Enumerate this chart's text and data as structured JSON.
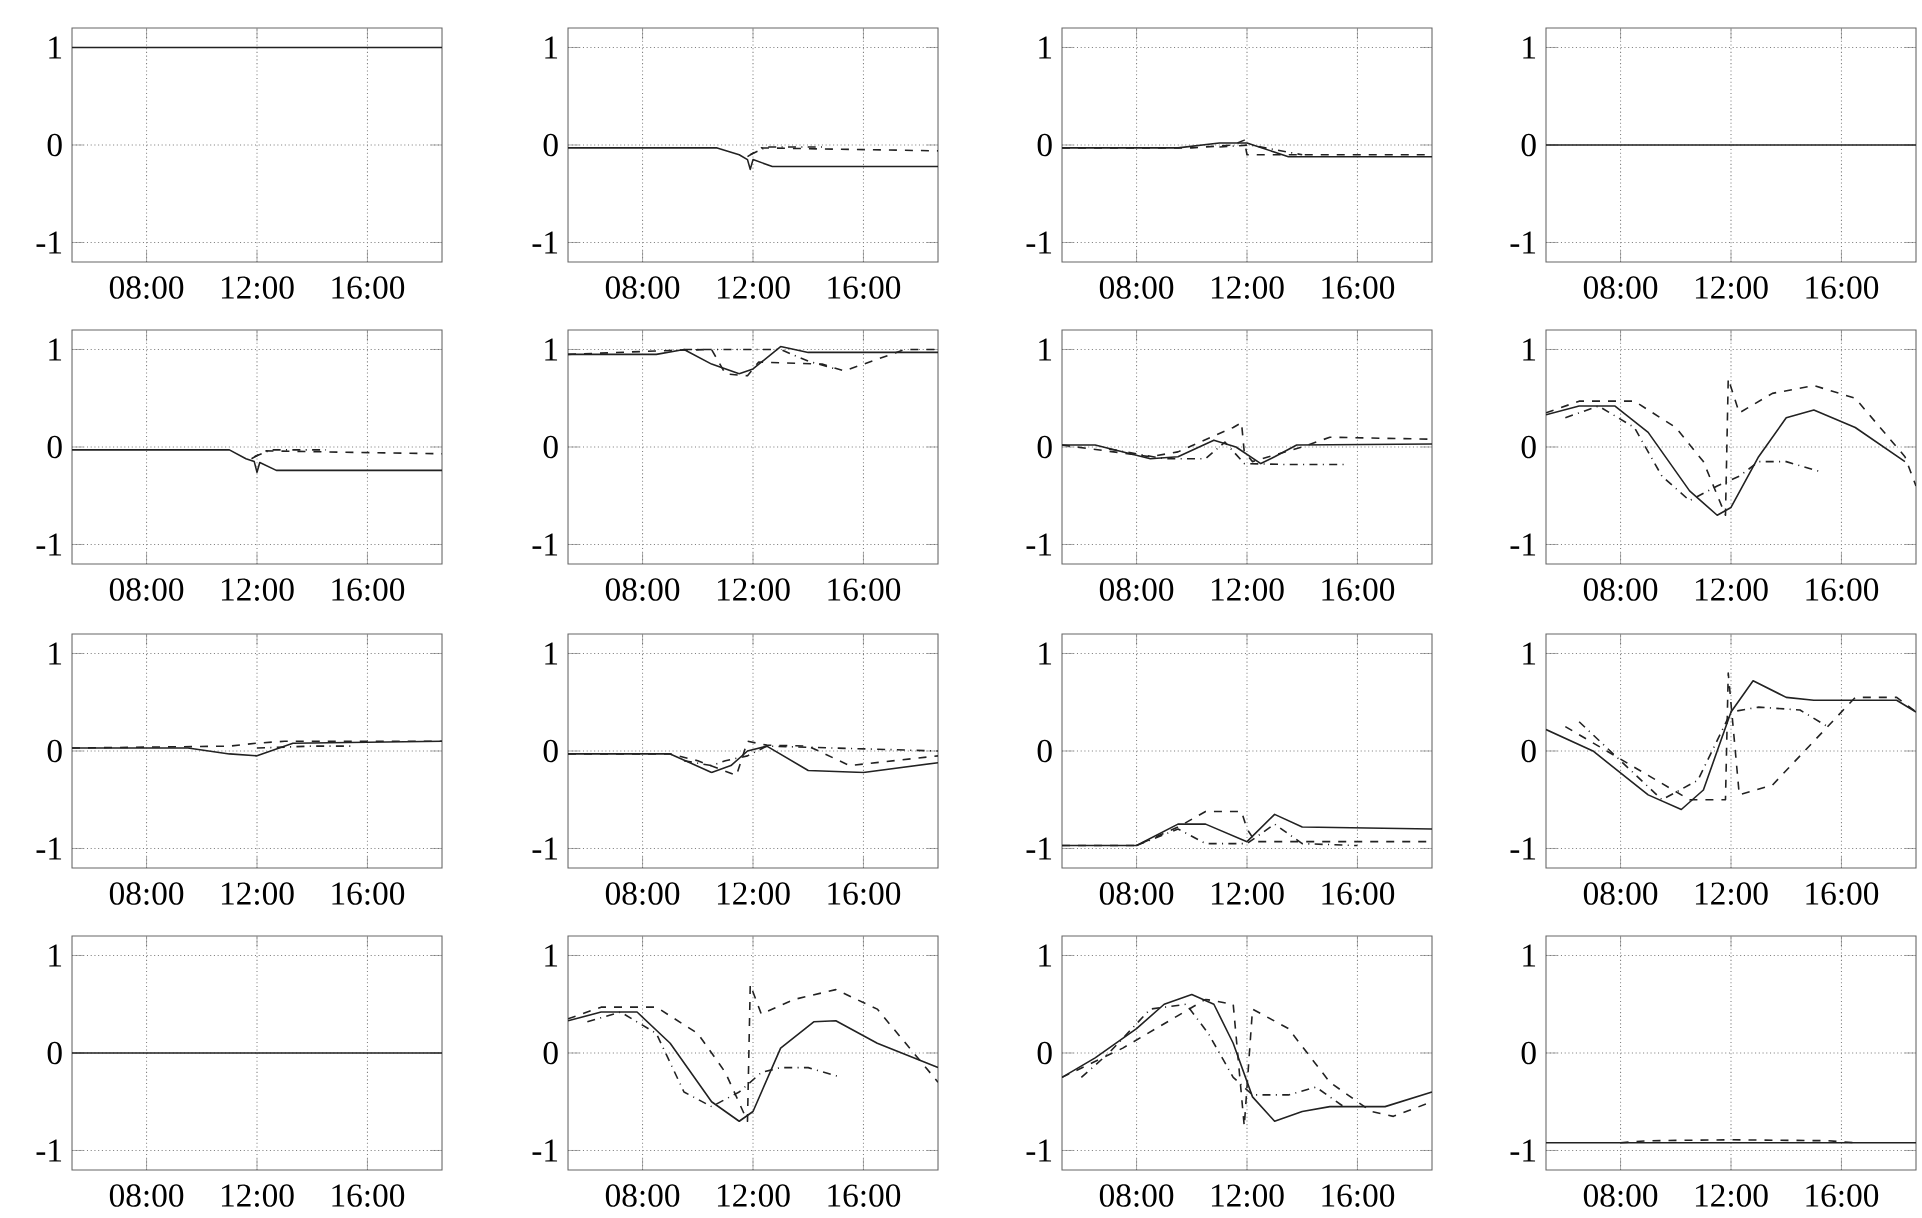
{
  "chart_data": [
    {
      "type": "line",
      "xlim": [
        5.3,
        18.7
      ],
      "ylim": [
        -1.2,
        1.2
      ],
      "xticks": [
        {
          "value": 8,
          "label": "08:00"
        },
        {
          "value": 12,
          "label": "12:00"
        },
        {
          "value": 16,
          "label": "16:00"
        }
      ],
      "yticks": [
        -1,
        0,
        1
      ],
      "grid": true,
      "series": [
        {
          "color": "#222222",
          "line_style": "solid",
          "x": [
            5.3,
            18.7
          ],
          "values": [
            1,
            1
          ]
        }
      ]
    },
    {
      "type": "line",
      "xlim": [
        5.3,
        18.7
      ],
      "ylim": [
        -1.2,
        1.2
      ],
      "xticks": [
        {
          "value": 8,
          "label": "08:00"
        },
        {
          "value": 12,
          "label": "12:00"
        },
        {
          "value": 16,
          "label": "16:00"
        }
      ],
      "yticks": [
        -1,
        0,
        1
      ],
      "grid": true,
      "series": [
        {
          "color": "#222222",
          "line_style": "solid",
          "x": [
            5.3,
            10.7,
            11.5,
            11.8,
            11.9,
            12.0,
            12.7,
            18.7
          ],
          "values": [
            -0.03,
            -0.03,
            -0.1,
            -0.15,
            -0.25,
            -0.15,
            -0.22,
            -0.22
          ]
        },
        {
          "color": "#222222",
          "line_style": "dashed",
          "x": [
            11.8,
            12.3,
            18.7
          ],
          "values": [
            -0.12,
            -0.03,
            -0.06
          ]
        },
        {
          "color": "#222222",
          "line_style": "dashdot",
          "x": [
            11.9,
            12.5,
            14.5
          ],
          "values": [
            -0.1,
            -0.02,
            -0.02
          ]
        }
      ]
    },
    {
      "type": "line",
      "xlim": [
        5.3,
        18.7
      ],
      "ylim": [
        -1.2,
        1.2
      ],
      "xticks": [
        {
          "value": 8,
          "label": "08:00"
        },
        {
          "value": 12,
          "label": "12:00"
        },
        {
          "value": 16,
          "label": "16:00"
        }
      ],
      "yticks": [
        -1,
        0,
        1
      ],
      "grid": true,
      "series": [
        {
          "color": "#222222",
          "line_style": "solid",
          "x": [
            5.3,
            9.5,
            11,
            12,
            13.5,
            18.7
          ],
          "values": [
            -0.03,
            -0.03,
            0.02,
            0.02,
            -0.12,
            -0.12
          ]
        },
        {
          "color": "#222222",
          "line_style": "dashed",
          "x": [
            5.3,
            10,
            11.5,
            11.9,
            12,
            13,
            18.7
          ],
          "values": [
            -0.03,
            -0.03,
            0,
            0.05,
            -0.1,
            -0.1,
            -0.1
          ]
        },
        {
          "color": "#222222",
          "line_style": "dashdot",
          "x": [
            11,
            12.1,
            14
          ],
          "values": [
            -0.02,
            0,
            -0.1
          ]
        }
      ]
    },
    {
      "type": "line",
      "xlim": [
        5.3,
        18.7
      ],
      "ylim": [
        -1.2,
        1.2
      ],
      "xticks": [
        {
          "value": 8,
          "label": "08:00"
        },
        {
          "value": 12,
          "label": "12:00"
        },
        {
          "value": 16,
          "label": "16:00"
        }
      ],
      "yticks": [
        -1,
        0,
        1
      ],
      "grid": true,
      "series": [
        {
          "color": "#222222",
          "line_style": "solid",
          "x": [
            5.3,
            18.7
          ],
          "values": [
            0,
            0
          ]
        }
      ]
    },
    {
      "type": "line",
      "xlim": [
        5.3,
        18.7
      ],
      "ylim": [
        -1.2,
        1.2
      ],
      "xticks": [
        {
          "value": 8,
          "label": "08:00"
        },
        {
          "value": 12,
          "label": "12:00"
        },
        {
          "value": 16,
          "label": "16:00"
        }
      ],
      "yticks": [
        -1,
        0,
        1
      ],
      "grid": true,
      "series": [
        {
          "color": "#222222",
          "line_style": "solid",
          "x": [
            5.3,
            11,
            11.6,
            11.9,
            12.0,
            12.1,
            12.7,
            18.7
          ],
          "values": [
            -0.03,
            -0.03,
            -0.12,
            -0.15,
            -0.26,
            -0.16,
            -0.24,
            -0.24
          ]
        },
        {
          "color": "#222222",
          "line_style": "dashed",
          "x": [
            11.8,
            12.3,
            18.7
          ],
          "values": [
            -0.12,
            -0.04,
            -0.07
          ]
        },
        {
          "color": "#222222",
          "line_style": "dashdot",
          "x": [
            11.9,
            12.5,
            14.5
          ],
          "values": [
            -0.1,
            -0.03,
            -0.03
          ]
        }
      ]
    },
    {
      "type": "line",
      "xlim": [
        5.3,
        18.7
      ],
      "ylim": [
        -1.2,
        1.2
      ],
      "xticks": [
        {
          "value": 8,
          "label": "08:00"
        },
        {
          "value": 12,
          "label": "12:00"
        },
        {
          "value": 16,
          "label": "16:00"
        }
      ],
      "yticks": [
        -1,
        0,
        1
      ],
      "grid": true,
      "series": [
        {
          "color": "#222222",
          "line_style": "solid",
          "x": [
            5.3,
            8.5,
            9.5,
            10.5,
            11.5,
            12.0,
            13.0,
            14,
            18.7
          ],
          "values": [
            0.95,
            0.95,
            1.0,
            0.85,
            0.75,
            0.8,
            1.03,
            0.97,
            0.97
          ]
        },
        {
          "color": "#222222",
          "line_style": "dashed",
          "x": [
            5.3,
            9,
            10.5,
            11.0,
            11.8,
            12.2,
            14.5,
            15.3,
            16.5,
            17.5,
            18.7
          ],
          "values": [
            0.95,
            0.99,
            1.0,
            0.75,
            0.73,
            0.87,
            0.85,
            0.78,
            0.9,
            1.0,
            1.0
          ]
        },
        {
          "color": "#222222",
          "line_style": "dashdot",
          "x": [
            9.5,
            13,
            14,
            15
          ],
          "values": [
            1.0,
            1.0,
            0.88,
            0.8
          ]
        }
      ]
    },
    {
      "type": "line",
      "xlim": [
        5.3,
        18.7
      ],
      "ylim": [
        -1.2,
        1.2
      ],
      "xticks": [
        {
          "value": 8,
          "label": "08:00"
        },
        {
          "value": 12,
          "label": "12:00"
        },
        {
          "value": 16,
          "label": "16:00"
        }
      ],
      "yticks": [
        -1,
        0,
        1
      ],
      "grid": true,
      "series": [
        {
          "color": "#222222",
          "line_style": "solid",
          "x": [
            5.3,
            6.5,
            8.5,
            9.5,
            10.8,
            11.6,
            12.5,
            13,
            13.8,
            18.7
          ],
          "values": [
            0.02,
            0.02,
            -0.12,
            -0.1,
            0.07,
            0.0,
            -0.17,
            -0.1,
            0.02,
            0.03
          ]
        },
        {
          "color": "#222222",
          "line_style": "dashed",
          "x": [
            5.3,
            8.5,
            9.5,
            11.5,
            11.8,
            11.9,
            12.2,
            14,
            15,
            18.7
          ],
          "values": [
            0.02,
            -0.1,
            -0.05,
            0.2,
            0.25,
            -0.05,
            -0.15,
            0,
            0.1,
            0.08
          ]
        },
        {
          "color": "#222222",
          "line_style": "dashdot",
          "x": [
            7,
            9,
            10.5,
            11.2,
            11.9,
            13.5,
            15.5
          ],
          "values": [
            -0.02,
            -0.12,
            -0.12,
            0.05,
            -0.17,
            -0.18,
            -0.18
          ]
        }
      ]
    },
    {
      "type": "line",
      "xlim": [
        5.3,
        18.7
      ],
      "ylim": [
        -1.2,
        1.2
      ],
      "xticks": [
        {
          "value": 8,
          "label": "08:00"
        },
        {
          "value": 12,
          "label": "12:00"
        },
        {
          "value": 16,
          "label": "16:00"
        }
      ],
      "yticks": [
        -1,
        0,
        1
      ],
      "grid": true,
      "series": [
        {
          "color": "#222222",
          "line_style": "solid",
          "x": [
            5.3,
            6.5,
            7.8,
            9,
            10.5,
            11.5,
            12,
            13,
            14,
            15,
            16.5,
            18.3
          ],
          "values": [
            0.33,
            0.42,
            0.42,
            0.15,
            -0.45,
            -0.7,
            -0.62,
            -0.1,
            0.3,
            0.38,
            0.2,
            -0.15
          ]
        },
        {
          "color": "#222222",
          "line_style": "dashed",
          "x": [
            5.3,
            6.5,
            8.5,
            10,
            11,
            11.8,
            11.9,
            12.3,
            13.5,
            15,
            16.5,
            18.3,
            18.7
          ],
          "values": [
            0.35,
            0.47,
            0.47,
            0.2,
            -0.15,
            -0.7,
            0.7,
            0.35,
            0.55,
            0.63,
            0.5,
            -0.1,
            -0.4
          ]
        },
        {
          "color": "#222222",
          "line_style": "dashdot",
          "x": [
            6,
            7.2,
            8.5,
            9.5,
            10.5,
            11.5,
            12.3,
            13,
            14,
            15.2
          ],
          "values": [
            0.3,
            0.42,
            0.2,
            -0.3,
            -0.55,
            -0.4,
            -0.3,
            -0.15,
            -0.15,
            -0.25
          ]
        }
      ]
    },
    {
      "type": "line",
      "xlim": [
        5.3,
        18.7
      ],
      "ylim": [
        -1.2,
        1.2
      ],
      "xticks": [
        {
          "value": 8,
          "label": "08:00"
        },
        {
          "value": 12,
          "label": "12:00"
        },
        {
          "value": 16,
          "label": "16:00"
        }
      ],
      "yticks": [
        -1,
        0,
        1
      ],
      "grid": true,
      "series": [
        {
          "color": "#222222",
          "line_style": "solid",
          "x": [
            5.3,
            9.5,
            11,
            12,
            13.3,
            18.7
          ],
          "values": [
            0.03,
            0.03,
            -0.03,
            -0.05,
            0.08,
            0.1
          ]
        },
        {
          "color": "#222222",
          "line_style": "dashed",
          "x": [
            5.3,
            11,
            12,
            13,
            18.7
          ],
          "values": [
            0.03,
            0.05,
            0.08,
            0.1,
            0.1
          ]
        },
        {
          "color": "#222222",
          "line_style": "dashdot",
          "x": [
            12,
            14,
            15.5
          ],
          "values": [
            0.03,
            0.05,
            0.05
          ]
        }
      ]
    },
    {
      "type": "line",
      "xlim": [
        5.3,
        18.7
      ],
      "ylim": [
        -1.2,
        1.2
      ],
      "xticks": [
        {
          "value": 8,
          "label": "08:00"
        },
        {
          "value": 12,
          "label": "12:00"
        },
        {
          "value": 16,
          "label": "16:00"
        }
      ],
      "yticks": [
        -1,
        0,
        1
      ],
      "grid": true,
      "series": [
        {
          "color": "#222222",
          "line_style": "solid",
          "x": [
            5.3,
            9,
            10.5,
            11.2,
            11.8,
            12.5,
            14,
            16,
            18.7
          ],
          "values": [
            -0.03,
            -0.03,
            -0.22,
            -0.15,
            0,
            0.05,
            -0.2,
            -0.22,
            -0.12
          ]
        },
        {
          "color": "#222222",
          "line_style": "dashed",
          "x": [
            5.3,
            9,
            10,
            11.4,
            11.8,
            12.5,
            14,
            15.5,
            18.7
          ],
          "values": [
            -0.03,
            -0.03,
            -0.1,
            -0.25,
            0.1,
            0.06,
            0.05,
            -0.15,
            -0.05
          ]
        },
        {
          "color": "#222222",
          "line_style": "dashdot",
          "x": [
            9.5,
            10.5,
            11,
            11.8,
            12.5,
            15,
            18.7
          ],
          "values": [
            -0.1,
            -0.15,
            -0.1,
            -0.05,
            0.05,
            0.03,
            0
          ]
        }
      ]
    },
    {
      "type": "line",
      "xlim": [
        5.3,
        18.7
      ],
      "ylim": [
        -1.2,
        1.2
      ],
      "xticks": [
        {
          "value": 8,
          "label": "08:00"
        },
        {
          "value": 12,
          "label": "12:00"
        },
        {
          "value": 16,
          "label": "16:00"
        }
      ],
      "yticks": [
        -1,
        0,
        1
      ],
      "grid": true,
      "series": [
        {
          "color": "#222222",
          "line_style": "solid",
          "x": [
            5.3,
            8,
            9.5,
            10.5,
            12,
            13,
            14,
            18.7
          ],
          "values": [
            -0.97,
            -0.97,
            -0.75,
            -0.75,
            -0.93,
            -0.65,
            -0.78,
            -0.8
          ]
        },
        {
          "color": "#222222",
          "line_style": "dashed",
          "x": [
            5.3,
            8,
            9.5,
            10.5,
            11.8,
            12,
            12.3,
            18.7
          ],
          "values": [
            -0.97,
            -0.97,
            -0.78,
            -0.62,
            -0.62,
            -0.8,
            -0.93,
            -0.93
          ]
        },
        {
          "color": "#222222",
          "line_style": "dashdot",
          "x": [
            8,
            9.5,
            10.5,
            12,
            13,
            14,
            16
          ],
          "values": [
            -0.97,
            -0.8,
            -0.95,
            -0.95,
            -0.75,
            -0.95,
            -0.97
          ]
        }
      ]
    },
    {
      "type": "line",
      "xlim": [
        5.3,
        18.7
      ],
      "ylim": [
        -1.2,
        1.2
      ],
      "xticks": [
        {
          "value": 8,
          "label": "08:00"
        },
        {
          "value": 12,
          "label": "12:00"
        },
        {
          "value": 16,
          "label": "16:00"
        }
      ],
      "yticks": [
        -1,
        0,
        1
      ],
      "grid": true,
      "series": [
        {
          "color": "#222222",
          "line_style": "solid",
          "x": [
            5.3,
            7,
            9,
            10.2,
            11,
            12,
            12.8,
            14,
            15,
            17,
            18,
            18.7
          ],
          "values": [
            0.22,
            0,
            -0.45,
            -0.6,
            -0.4,
            0.4,
            0.72,
            0.55,
            0.52,
            0.52,
            0.52,
            0.4
          ]
        },
        {
          "color": "#222222",
          "line_style": "dashed",
          "x": [
            6,
            7.5,
            9,
            10.5,
            11.8,
            11.9,
            12.3,
            13.5,
            15,
            16.5,
            18,
            18.7
          ],
          "values": [
            0.25,
            0,
            -0.25,
            -0.5,
            -0.5,
            0.8,
            -0.45,
            -0.35,
            0.1,
            0.55,
            0.55,
            0.4
          ]
        },
        {
          "color": "#222222",
          "line_style": "dashdot",
          "x": [
            6.5,
            8,
            9.5,
            10.8,
            12,
            13,
            14.5,
            15.5
          ],
          "values": [
            0.3,
            -0.1,
            -0.5,
            -0.3,
            0.4,
            0.45,
            0.42,
            0.25
          ]
        }
      ]
    },
    {
      "type": "line",
      "xlim": [
        5.3,
        18.7
      ],
      "ylim": [
        -1.2,
        1.2
      ],
      "xticks": [
        {
          "value": 8,
          "label": "08:00"
        },
        {
          "value": 12,
          "label": "12:00"
        },
        {
          "value": 16,
          "label": "16:00"
        }
      ],
      "yticks": [
        -1,
        0,
        1
      ],
      "grid": true,
      "series": [
        {
          "color": "#222222",
          "line_style": "solid",
          "x": [
            5.3,
            18.7
          ],
          "values": [
            0,
            0
          ]
        }
      ]
    },
    {
      "type": "line",
      "xlim": [
        5.3,
        18.7
      ],
      "ylim": [
        -1.2,
        1.2
      ],
      "xticks": [
        {
          "value": 8,
          "label": "08:00"
        },
        {
          "value": 12,
          "label": "12:00"
        },
        {
          "value": 16,
          "label": "16:00"
        }
      ],
      "yticks": [
        -1,
        0,
        1
      ],
      "grid": true,
      "series": [
        {
          "color": "#222222",
          "line_style": "solid",
          "x": [
            5.3,
            6.5,
            7.8,
            9,
            10.5,
            11.5,
            12,
            13,
            14.2,
            15,
            16.5,
            18.7
          ],
          "values": [
            0.33,
            0.42,
            0.42,
            0.1,
            -0.5,
            -0.7,
            -0.6,
            0.05,
            0.32,
            0.33,
            0.1,
            -0.15
          ]
        },
        {
          "color": "#222222",
          "line_style": "dashed",
          "x": [
            5.3,
            6.5,
            8.5,
            10,
            11,
            11.8,
            11.9,
            12.3,
            13.5,
            15,
            16.5,
            18.7
          ],
          "values": [
            0.35,
            0.47,
            0.47,
            0.2,
            -0.2,
            -0.7,
            0.7,
            0.4,
            0.55,
            0.65,
            0.45,
            -0.3
          ]
        },
        {
          "color": "#222222",
          "line_style": "dashdot",
          "x": [
            6,
            7.2,
            8.5,
            9.5,
            10.5,
            11.5,
            12.3,
            13,
            14,
            15.2
          ],
          "values": [
            0.32,
            0.42,
            0.2,
            -0.4,
            -0.55,
            -0.4,
            -0.2,
            -0.15,
            -0.15,
            -0.25
          ]
        }
      ]
    },
    {
      "type": "line",
      "xlim": [
        5.3,
        18.7
      ],
      "ylim": [
        -1.2,
        1.2
      ],
      "xticks": [
        {
          "value": 8,
          "label": "08:00"
        },
        {
          "value": 12,
          "label": "12:00"
        },
        {
          "value": 16,
          "label": "16:00"
        }
      ],
      "yticks": [
        -1,
        0,
        1
      ],
      "grid": true,
      "series": [
        {
          "color": "#222222",
          "line_style": "solid",
          "x": [
            5.3,
            6.5,
            8,
            9,
            10,
            10.8,
            11.5,
            12.2,
            13,
            14,
            15,
            17,
            18.7
          ],
          "values": [
            -0.25,
            -0.05,
            0.25,
            0.5,
            0.6,
            0.5,
            0.1,
            -0.45,
            -0.7,
            -0.6,
            -0.55,
            -0.55,
            -0.4
          ]
        },
        {
          "color": "#222222",
          "line_style": "dashed",
          "x": [
            5.3,
            7.5,
            9,
            10.5,
            11.5,
            11.9,
            12.2,
            13.5,
            15,
            16.5,
            17.3,
            18.7
          ],
          "values": [
            -0.25,
            0.05,
            0.3,
            0.55,
            0.5,
            -0.75,
            0.45,
            0.25,
            -0.3,
            -0.6,
            -0.65,
            -0.5
          ]
        },
        {
          "color": "#222222",
          "line_style": "dashdot",
          "x": [
            6,
            7,
            8.5,
            9.8,
            10.6,
            11.5,
            12.2,
            13.5,
            14.5,
            15.5
          ],
          "values": [
            -0.25,
            0,
            0.45,
            0.5,
            0.2,
            -0.25,
            -0.43,
            -0.43,
            -0.35,
            -0.55
          ]
        }
      ]
    },
    {
      "type": "line",
      "xlim": [
        5.3,
        18.7
      ],
      "ylim": [
        -1.2,
        1.2
      ],
      "xticks": [
        {
          "value": 8,
          "label": "08:00"
        },
        {
          "value": 12,
          "label": "12:00"
        },
        {
          "value": 16,
          "label": "16:00"
        }
      ],
      "yticks": [
        -1,
        0,
        1
      ],
      "grid": true,
      "series": [
        {
          "color": "#222222",
          "line_style": "solid",
          "x": [
            5.3,
            18.7
          ],
          "values": [
            -0.92,
            -0.92
          ]
        },
        {
          "color": "#222222",
          "line_style": "dashed",
          "x": [
            8,
            9,
            12,
            15.5,
            16.5
          ],
          "values": [
            -0.92,
            -0.9,
            -0.89,
            -0.9,
            -0.92
          ]
        }
      ]
    }
  ]
}
